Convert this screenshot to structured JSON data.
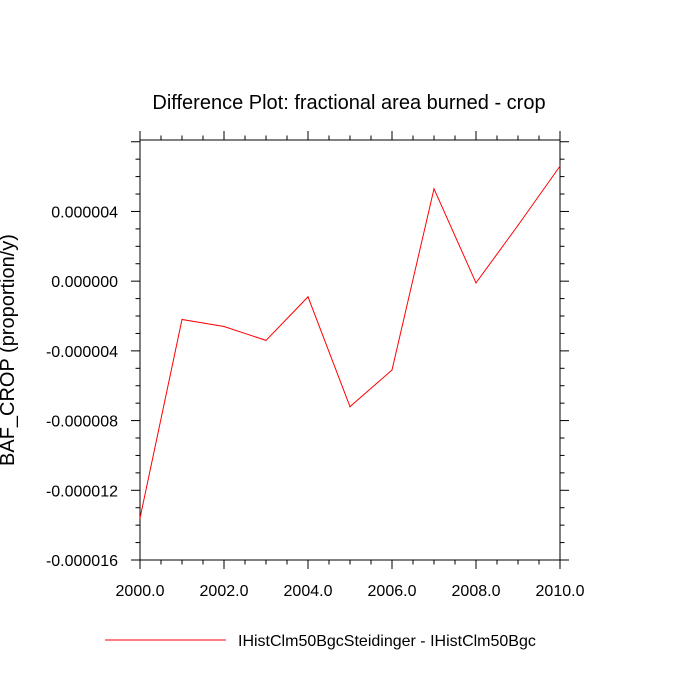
{
  "chart_data": {
    "type": "line",
    "title": "Difference Plot: fractional area burned - crop",
    "xlabel": "",
    "ylabel": "BAF_CROP  (proportion/y)",
    "xlim": [
      2000.0,
      2010.0
    ],
    "ylim": [
      -1.6e-05,
      8.1e-06
    ],
    "x_ticks": [
      2000.0,
      2002.0,
      2004.0,
      2006.0,
      2008.0,
      2010.0
    ],
    "x_tick_labels": [
      "2000.0",
      "2002.0",
      "2004.0",
      "2006.0",
      "2008.0",
      "2010.0"
    ],
    "y_ticks": [
      -1.6e-05,
      -1.2e-05,
      -8e-06,
      -4e-06,
      0.0,
      4e-06
    ],
    "y_tick_labels": [
      "-0.000016",
      "-0.000012",
      "-0.000008",
      "-0.000004",
      "0.000000",
      "0.000004"
    ],
    "grid": false,
    "legend_position": "bottom",
    "series": [
      {
        "name": "IHistClm50BgcSteidinger - IHistClm50Bgc",
        "color": "#ff0000",
        "x": [
          2000,
          2001,
          2002,
          2003,
          2004,
          2005,
          2006,
          2007,
          2008,
          2009,
          2010
        ],
        "y": [
          -1.36e-05,
          -2.2e-06,
          -2.6e-06,
          -3.4e-06,
          -9e-07,
          -7.2e-06,
          -5.1e-06,
          5.3e-06,
          -1e-07,
          3.2e-06,
          6.6e-06
        ]
      }
    ]
  }
}
